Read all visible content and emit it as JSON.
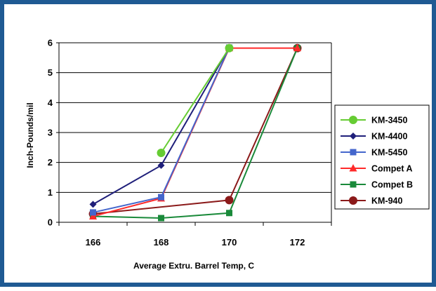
{
  "chart_data": {
    "type": "line",
    "title": "",
    "xlabel": "Average Extru. Barrel Temp, C",
    "ylabel": "Inch-Pounds/mil",
    "x_ticks": [
      "166",
      "168",
      "170",
      "172"
    ],
    "y_ticks": [
      "0",
      "1",
      "2",
      "3",
      "4",
      "5",
      "6"
    ],
    "xlim": [
      165,
      173
    ],
    "ylim": [
      0,
      6
    ],
    "grid": "horizontal",
    "legend_position": "right",
    "series": [
      {
        "name": "KM-3450",
        "color": "#66cc33",
        "marker": "circle",
        "x": [
          168,
          170
        ],
        "y": [
          2.32,
          5.82
        ]
      },
      {
        "name": "KM-4400",
        "color": "#1f1f7a",
        "marker": "diamond",
        "x": [
          166,
          168,
          170
        ],
        "y": [
          0.6,
          1.9,
          5.84
        ]
      },
      {
        "name": "KM-5450",
        "color": "#4466cc",
        "marker": "square",
        "x": [
          166,
          168,
          170
        ],
        "y": [
          0.33,
          0.84,
          5.84
        ]
      },
      {
        "name": "Compet A",
        "color": "#ff2a2a",
        "marker": "triangle",
        "x": [
          166,
          168,
          170,
          172
        ],
        "y": [
          0.2,
          0.8,
          5.82,
          5.82
        ]
      },
      {
        "name": "Compet B",
        "color": "#1a8a3a",
        "marker": "square",
        "x": [
          166,
          168,
          170,
          172
        ],
        "y": [
          0.2,
          0.14,
          0.31,
          5.82
        ]
      },
      {
        "name": "KM-940",
        "color": "#8b1a1a",
        "marker": "circle",
        "x": [
          166,
          170,
          172
        ],
        "y": [
          0.28,
          0.74,
          5.82
        ]
      }
    ]
  }
}
